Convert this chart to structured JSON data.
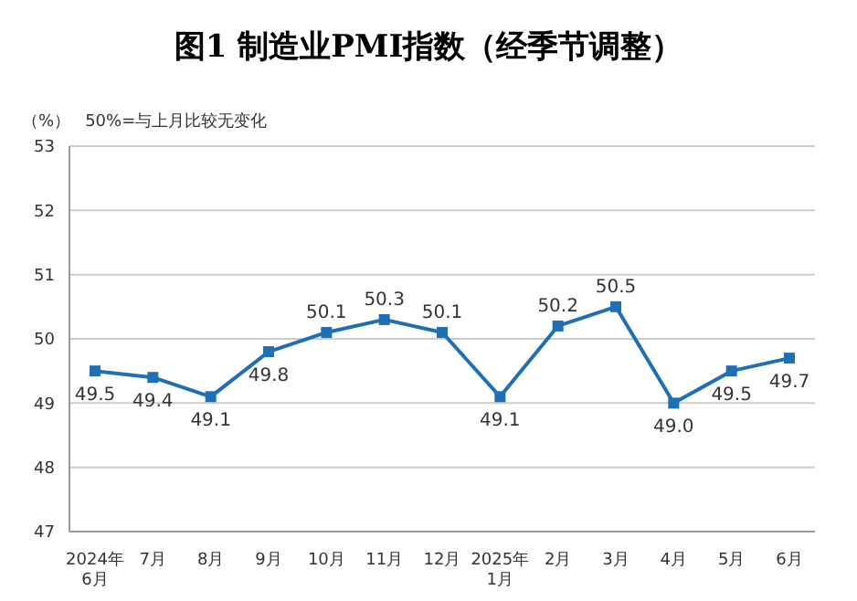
{
  "chart_data": {
    "type": "line",
    "title": "图1  制造业PMI指数（经季节调整）",
    "ylabel": "（%）",
    "subtitle": "50%=与上月比较无变化",
    "categories": [
      "2024年\n6月",
      "7月",
      "8月",
      "9月",
      "10月",
      "11月",
      "12月",
      "2025年\n1月",
      "2月",
      "3月",
      "4月",
      "5月",
      "6月"
    ],
    "series": [
      {
        "color": "#1f6fb5",
        "values": [
          49.5,
          49.4,
          49.1,
          49.8,
          50.1,
          50.3,
          50.1,
          49.1,
          50.2,
          50.5,
          49.0,
          49.5,
          49.7
        ],
        "value_labels": [
          "49.5",
          "49.4",
          "49.1",
          "49.8",
          "50.1",
          "50.3",
          "50.1",
          "49.1",
          "50.2",
          "50.5",
          "49.0",
          "49.5",
          "49.7"
        ]
      }
    ],
    "ylim": [
      47,
      53
    ],
    "yticks": [
      47,
      48,
      49,
      50,
      51,
      52,
      53
    ],
    "grid": "y",
    "marker": "square",
    "line_style": "solid",
    "legend": false
  }
}
